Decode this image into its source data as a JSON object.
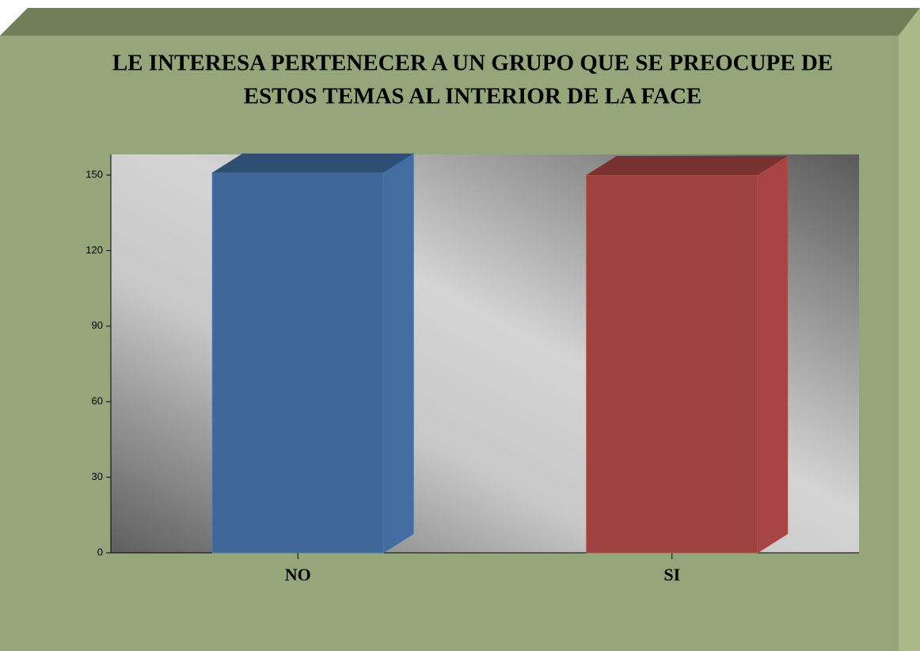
{
  "chart_data": {
    "type": "bar3d",
    "title": "LE INTERESA PERTENECER A UN GRUPO QUE SE PREOCUPE DE",
    "subtitle": "ESTOS TEMAS AL INTERIOR DE LA FACE",
    "categories": [
      "NO",
      "SI"
    ],
    "values": [
      151,
      150
    ],
    "colors": [
      "#3f6899",
      "#9e4240"
    ],
    "ylim": [
      0,
      150
    ],
    "yticks": [
      0,
      30,
      60,
      90,
      120,
      150
    ]
  }
}
